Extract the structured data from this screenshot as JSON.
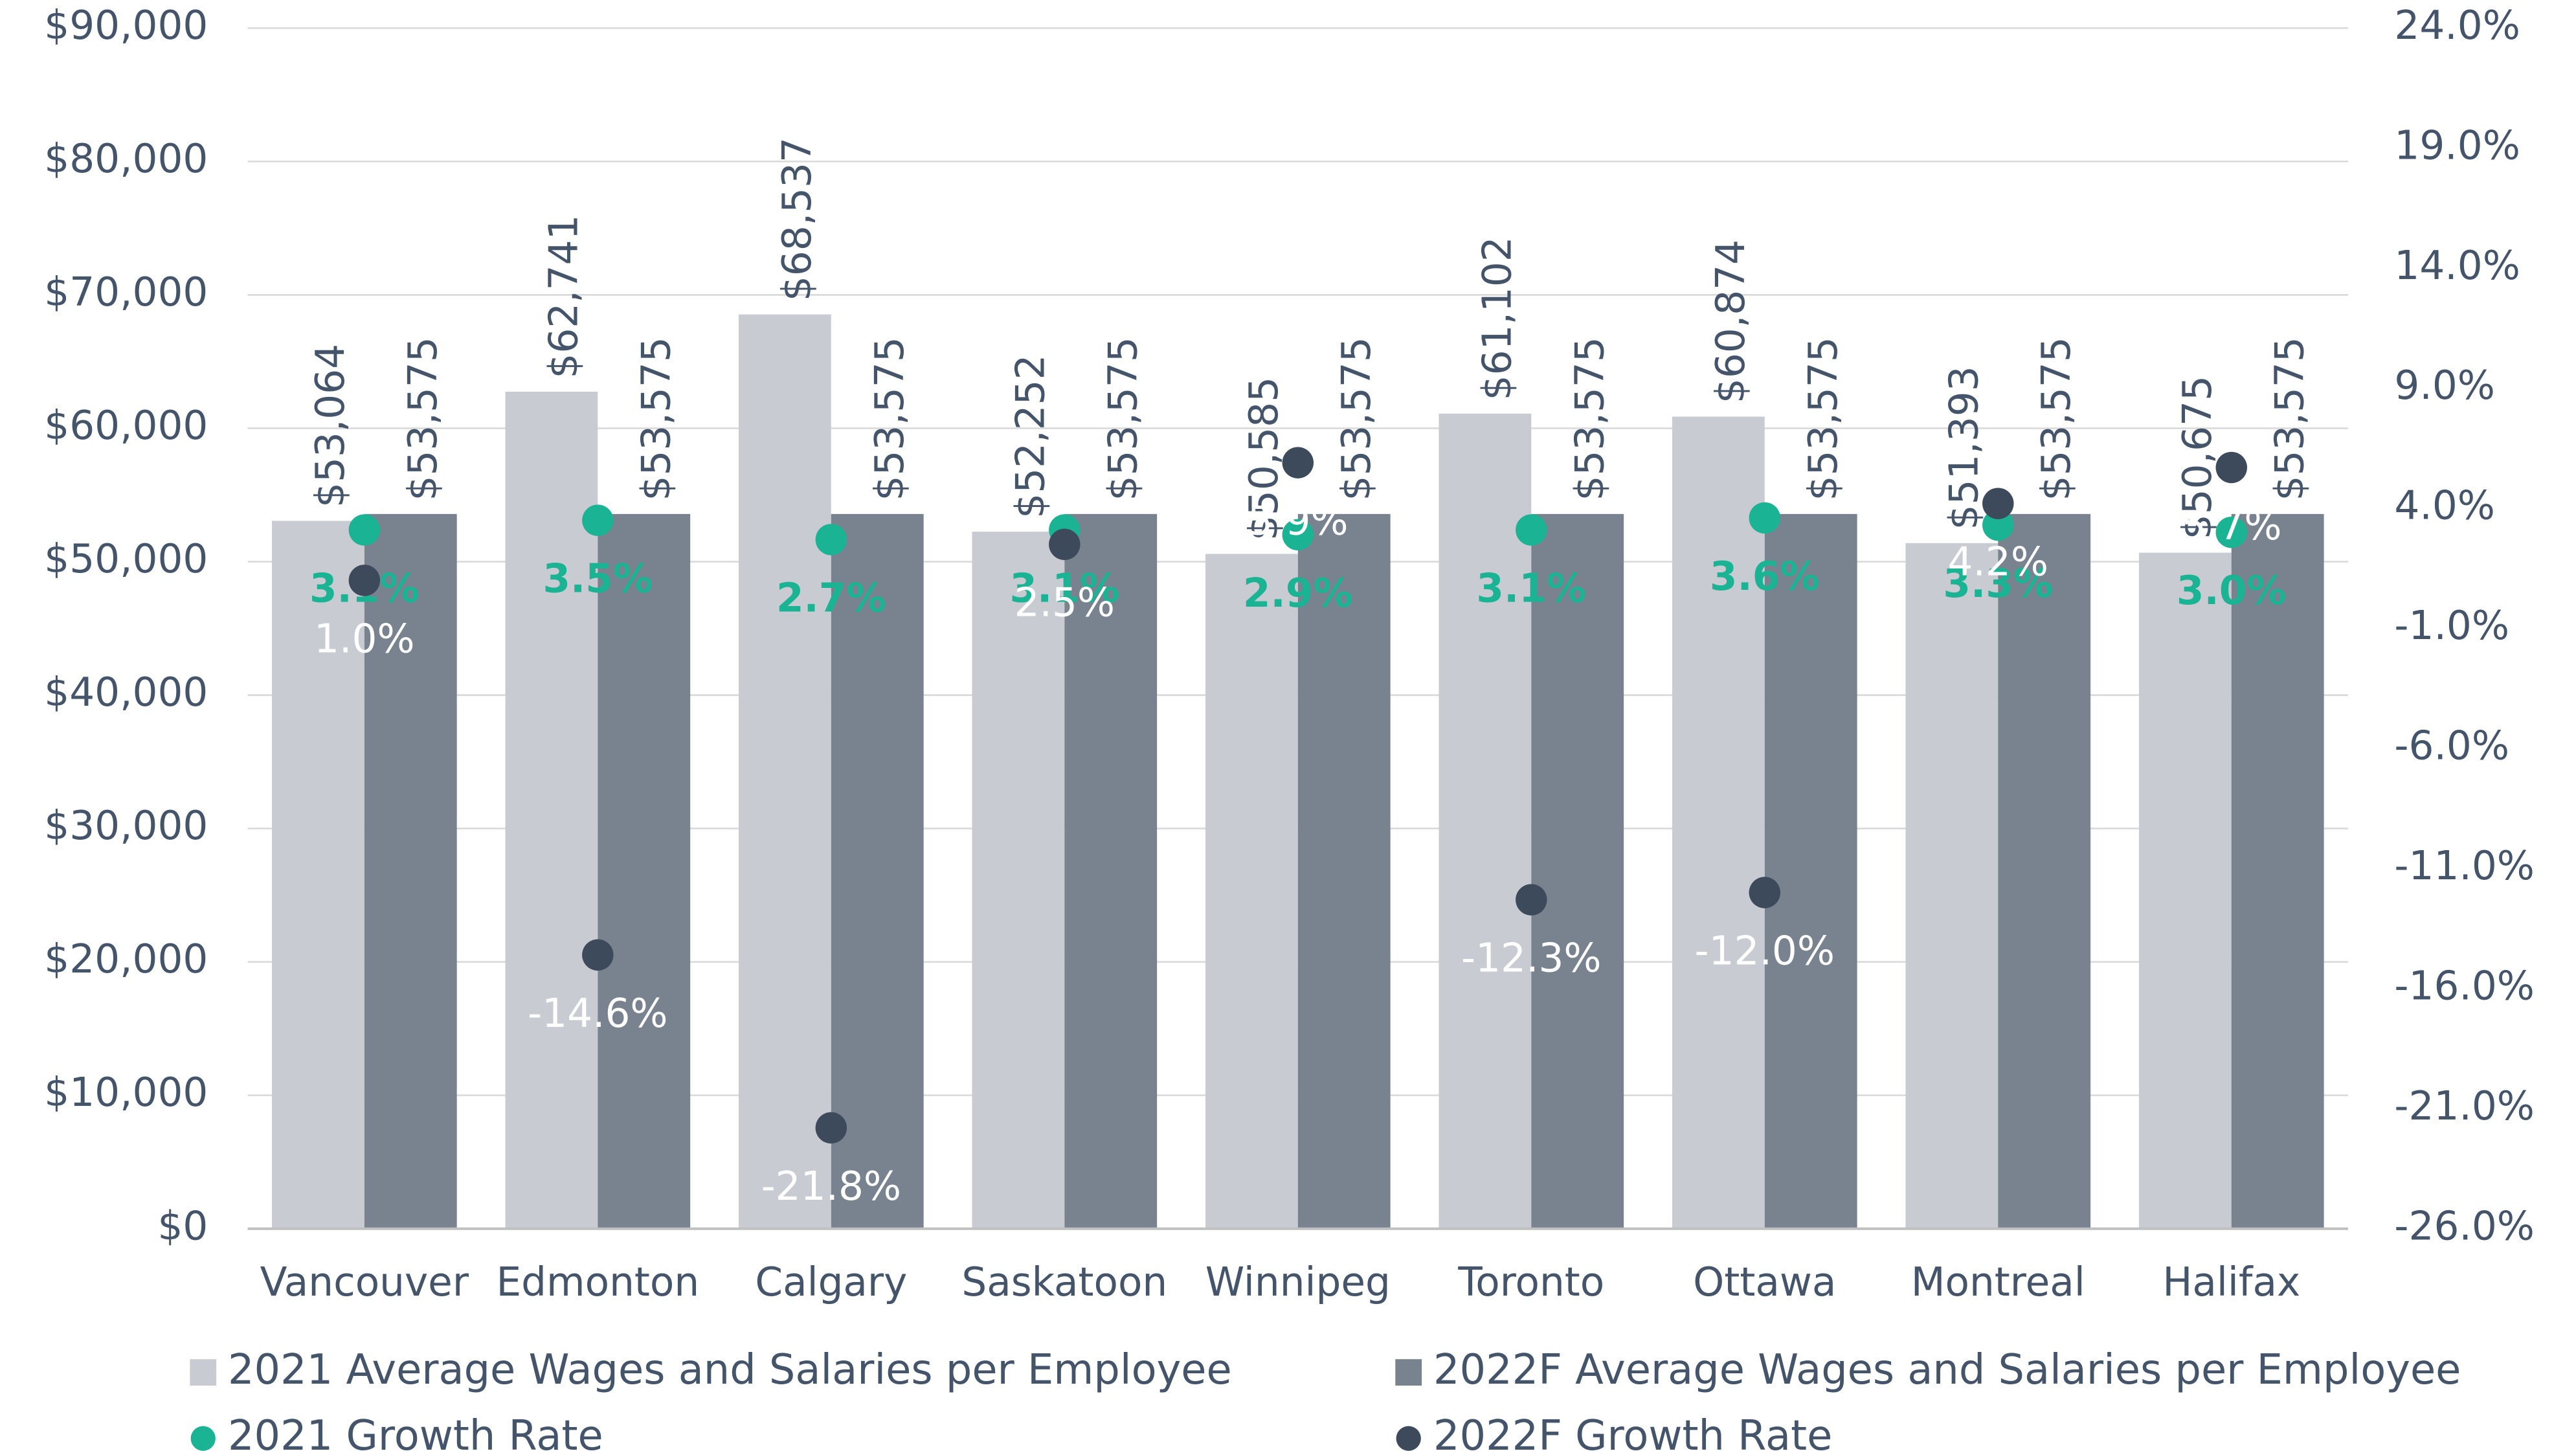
{
  "chart_data": {
    "type": "bar",
    "categories": [
      "Vancouver",
      "Edmonton",
      "Calgary",
      "Saskatoon",
      "Winnipeg",
      "Toronto",
      "Ottawa",
      "Montreal",
      "Halifax"
    ],
    "series": [
      {
        "name": "2021 Average Wages and Salaries per Employee",
        "type": "bar",
        "color": "#c8ccd2",
        "values": [
          53064,
          62741,
          68537,
          52252,
          50585,
          61102,
          60874,
          51393,
          50675
        ],
        "value_labels": [
          "$53,064",
          "$62,741",
          "$68,537",
          "$52,252",
          "$50,585",
          "$61,102",
          "$60,874",
          "$51,393",
          "$50,675"
        ]
      },
      {
        "name": "2022F Average Wages and Salaries per Employee",
        "type": "bar",
        "color": "#78838f",
        "values": [
          53575,
          53575,
          53575,
          53575,
          53575,
          53575,
          53575,
          53575,
          53575
        ],
        "value_labels": [
          "$53,575",
          "$53,575",
          "$53,575",
          "$53,575",
          "$53,575",
          "$53,575",
          "$53,575",
          "$53,575",
          "$53,575"
        ]
      },
      {
        "name": "2021 Growth Rate",
        "type": "scatter",
        "axis": "y2",
        "color": "#1ab394",
        "values": [
          3.1,
          3.5,
          2.7,
          3.1,
          2.9,
          3.1,
          3.6,
          3.3,
          3.0
        ],
        "value_labels": [
          "3.1%",
          "3.5%",
          "2.7%",
          "3.1%",
          "2.9%",
          "3.1%",
          "3.6%",
          "3.3%",
          "3.0%"
        ]
      },
      {
        "name": "2022F Growth Rate",
        "type": "scatter",
        "axis": "y2",
        "color": "#3d4a5c",
        "values": [
          1.0,
          -14.6,
          -21.8,
          2.5,
          5.9,
          -12.3,
          -12.0,
          4.2,
          5.7
        ],
        "value_labels": [
          "1.0%",
          "-14.6%",
          "-21.8%",
          "2.5%",
          "5.9%",
          "-12.3%",
          "-12.0%",
          "4.2%",
          "5.7%"
        ]
      }
    ],
    "ylim": [
      0,
      90000
    ],
    "yticks": [
      {
        "value": 0,
        "label": "$0"
      },
      {
        "value": 10000,
        "label": "$10,000"
      },
      {
        "value": 20000,
        "label": "$20,000"
      },
      {
        "value": 30000,
        "label": "$30,000"
      },
      {
        "value": 40000,
        "label": "$40,000"
      },
      {
        "value": 50000,
        "label": "$50,000"
      },
      {
        "value": 60000,
        "label": "$60,000"
      },
      {
        "value": 70000,
        "label": "$70,000"
      },
      {
        "value": 80000,
        "label": "$80,000"
      },
      {
        "value": 90000,
        "label": "$90,000"
      }
    ],
    "y2lim": [
      -26,
      24
    ],
    "y2ticks": [
      {
        "value": -26,
        "label": "-26.0%"
      },
      {
        "value": -21,
        "label": "-21.0%"
      },
      {
        "value": -16,
        "label": "-16.0%"
      },
      {
        "value": -11,
        "label": "-11.0%"
      },
      {
        "value": -6,
        "label": "-6.0%"
      },
      {
        "value": -1,
        "label": "-1.0%"
      },
      {
        "value": 4,
        "label": "4.0%"
      },
      {
        "value": 9,
        "label": "9.0%"
      },
      {
        "value": 14,
        "label": "14.0%"
      },
      {
        "value": 19,
        "label": "19.0%"
      },
      {
        "value": 24,
        "label": "24.0%"
      }
    ],
    "grid": true,
    "legend": "bottom"
  }
}
